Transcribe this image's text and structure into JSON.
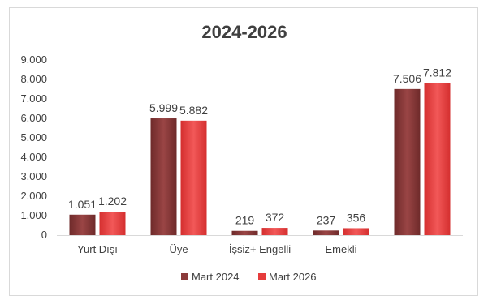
{
  "chart_data": {
    "type": "bar",
    "title": "2024-2026",
    "categories": [
      "Yurt Dışı",
      "Üye",
      "İşsiz+ Engelli",
      "Emekli",
      ""
    ],
    "series": [
      {
        "name": "Mart 2024",
        "values": [
          1051,
          5999,
          219,
          237,
          7506
        ],
        "labels": [
          "1.051",
          "5.999",
          "219",
          "237",
          "7.506"
        ],
        "color": "#8b3a3a"
      },
      {
        "name": "Mart 2026",
        "values": [
          1202,
          5882,
          372,
          356,
          7812
        ],
        "labels": [
          "1.202",
          "5.882",
          "372",
          "356",
          "7.812"
        ],
        "color": "#e63c3c"
      }
    ],
    "ylim": [
      0,
      9000
    ],
    "yticks": [
      {
        "value": 0,
        "label": "0"
      },
      {
        "value": 1000,
        "label": "1.000"
      },
      {
        "value": 2000,
        "label": "2.000"
      },
      {
        "value": 3000,
        "label": "3.000"
      },
      {
        "value": 4000,
        "label": "4.000"
      },
      {
        "value": 5000,
        "label": "5.000"
      },
      {
        "value": 6000,
        "label": "6.000"
      },
      {
        "value": 7000,
        "label": "7.000"
      },
      {
        "value": 8000,
        "label": "8.000"
      },
      {
        "value": 9000,
        "label": "9.000"
      }
    ],
    "grid": false,
    "legend": "bottom"
  }
}
